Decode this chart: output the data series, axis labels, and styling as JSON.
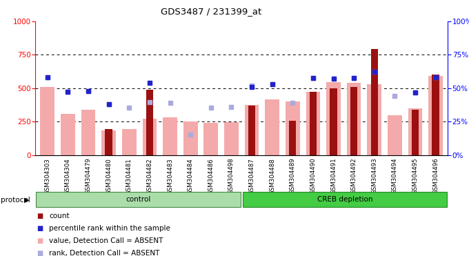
{
  "title": "GDS3487 / 231399_at",
  "samples": [
    "GSM304303",
    "GSM304304",
    "GSM304479",
    "GSM304480",
    "GSM304481",
    "GSM304482",
    "GSM304483",
    "GSM304484",
    "GSM304486",
    "GSM304498",
    "GSM304487",
    "GSM304488",
    "GSM304489",
    "GSM304490",
    "GSM304491",
    "GSM304492",
    "GSM304493",
    "GSM304494",
    "GSM304495",
    "GSM304496"
  ],
  "n_control": 10,
  "n_creb": 10,
  "count_values": [
    0,
    0,
    0,
    195,
    0,
    490,
    0,
    0,
    0,
    0,
    370,
    0,
    255,
    470,
    500,
    510,
    790,
    0,
    340,
    600
  ],
  "value_absent": [
    510,
    310,
    340,
    185,
    195,
    270,
    280,
    250,
    240,
    245,
    375,
    415,
    400,
    470,
    545,
    540,
    530,
    295,
    350,
    590
  ],
  "rank_absent": [
    58,
    47,
    48,
    38,
    35.5,
    39.5,
    39,
    15.5,
    35.5,
    36,
    52,
    53,
    39,
    57.5,
    57,
    57.5,
    62,
    44,
    46.5,
    58
  ],
  "percentile_rank": [
    58,
    47,
    48,
    38,
    null,
    54,
    null,
    null,
    null,
    null,
    51,
    53,
    null,
    57.5,
    57,
    57.5,
    62,
    null,
    46.5,
    58
  ],
  "ylim_left": [
    0,
    1000
  ],
  "ylim_right": [
    0,
    100
  ],
  "dark_red": "#9B1010",
  "light_pink": "#F4AAAA",
  "light_blue": "#AAAADD",
  "dark_blue": "#2222CC",
  "bg_color": "#FFFFFF",
  "axis_bg": "#FFFFFF",
  "label_area_bg": "#C8C8C8",
  "control_green_light": "#AADDAA",
  "creb_green_dark": "#44CC44",
  "grid_color": "#000000",
  "control_label": "control",
  "creb_label": "CREB depletion",
  "protocol_label": "protocol",
  "legend_count": "count",
  "legend_percentile": "percentile rank within the sample",
  "legend_value_absent": "value, Detection Call = ABSENT",
  "legend_rank_absent": "rank, Detection Call = ABSENT"
}
